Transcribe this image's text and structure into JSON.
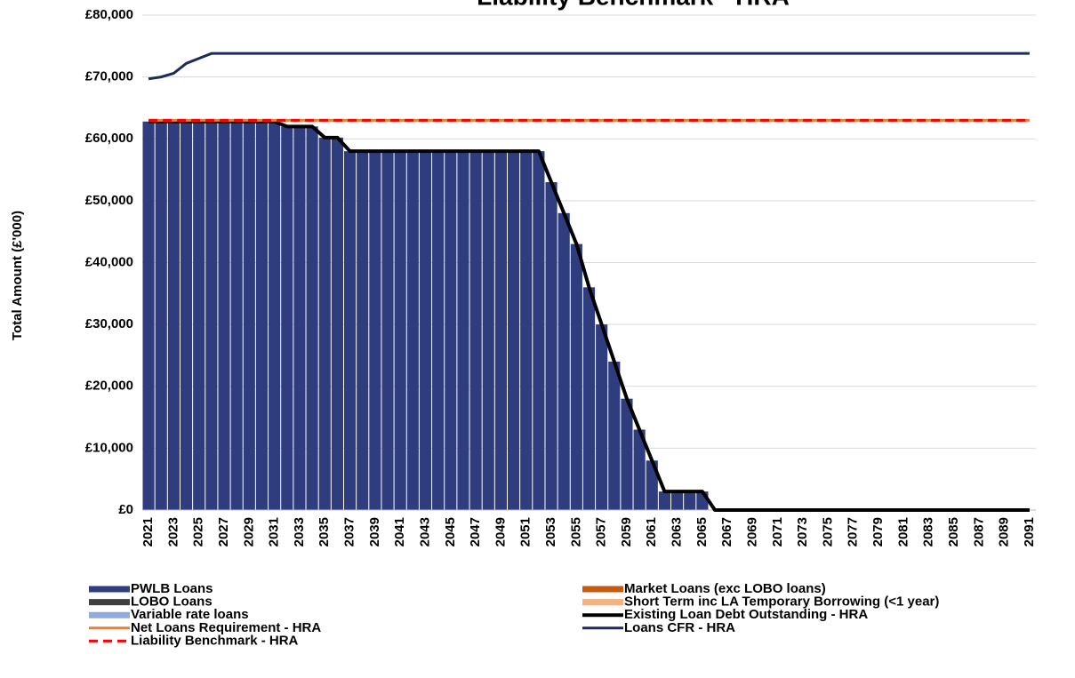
{
  "chart_data": {
    "type": "bar",
    "title": "Liability Benchmark - HRA",
    "y_label": "Total Amount (£'000)",
    "categories": [
      "2021",
      null,
      "2023",
      null,
      "2025",
      null,
      "2027",
      null,
      "2029",
      null,
      "2031",
      null,
      "2033",
      null,
      "2035",
      null,
      "2037",
      null,
      "2039",
      null,
      "2041",
      null,
      "2043",
      null,
      "2045",
      null,
      "2047",
      null,
      "2049",
      null,
      "2051",
      null,
      "2053",
      null,
      "2055",
      null,
      "2057",
      null,
      "2059",
      null,
      "2061",
      null,
      "2063",
      null,
      "2065",
      null,
      "2067",
      null,
      "2069",
      null,
      "2071",
      null,
      "2073",
      null,
      "2075",
      null,
      "2077",
      null,
      "2079",
      null,
      "2081",
      null,
      "2083",
      null,
      "2085",
      null,
      "2087",
      null,
      "2089",
      null,
      "2091"
    ],
    "ylim": [
      0,
      80000
    ],
    "yticks": [
      {
        "value": 0,
        "label": "£0"
      },
      {
        "value": 10000,
        "label": "£10,000"
      },
      {
        "value": 20000,
        "label": "£20,000"
      },
      {
        "value": 30000,
        "label": "£30,000"
      },
      {
        "value": 40000,
        "label": "£40,000"
      },
      {
        "value": 50000,
        "label": "£50,000"
      },
      {
        "value": 60000,
        "label": "£60,000"
      },
      {
        "value": 70000,
        "label": "£70,000"
      },
      {
        "value": 80000,
        "label": "£80,000"
      }
    ],
    "grid": true,
    "series": [
      {
        "name": "PWLB Loans",
        "color": "#2f3d7f",
        "kind": "bar",
        "values": [
          62800,
          62800,
          62800,
          62800,
          62800,
          62800,
          62800,
          62800,
          62800,
          62800,
          62800,
          62000,
          62000,
          62000,
          60200,
          60200,
          58000,
          58000,
          58000,
          58000,
          58000,
          58000,
          58000,
          58000,
          58000,
          58000,
          58000,
          58000,
          58000,
          58000,
          58000,
          58000,
          53000,
          48000,
          43000,
          36000,
          30000,
          24000,
          18000,
          13000,
          8000,
          3000,
          3000,
          3000,
          3000,
          0,
          0,
          0,
          0,
          0,
          0,
          0,
          0,
          0,
          0,
          0,
          0,
          0,
          0,
          0,
          0,
          0,
          0,
          0,
          0,
          0,
          0,
          0,
          0,
          0,
          0
        ]
      },
      {
        "name": "Market Loans (exc LOBO loans)",
        "color": "#c55a11",
        "kind": "bar",
        "values": [
          0,
          0,
          0,
          0,
          0,
          0,
          0,
          0,
          0,
          0,
          0,
          0,
          0,
          0,
          0,
          0,
          0,
          0,
          0,
          0,
          0,
          0,
          0,
          0,
          0,
          0,
          0,
          0,
          0,
          0,
          0,
          0,
          0,
          0,
          0,
          0,
          0,
          0,
          0,
          0,
          0,
          0,
          0,
          0,
          0,
          0,
          0,
          0,
          0,
          0,
          0,
          0,
          0,
          0,
          0,
          0,
          0,
          0,
          0,
          0,
          0,
          0,
          0,
          0,
          0,
          0,
          0,
          0,
          0,
          0,
          0
        ]
      },
      {
        "name": "LOBO Loans",
        "color": "#404040",
        "kind": "bar",
        "values": [
          0,
          0,
          0,
          0,
          0,
          0,
          0,
          0,
          0,
          0,
          0,
          0,
          0,
          0,
          0,
          0,
          0,
          0,
          0,
          0,
          0,
          0,
          0,
          0,
          0,
          0,
          0,
          0,
          0,
          0,
          0,
          0,
          0,
          0,
          0,
          0,
          0,
          0,
          0,
          0,
          0,
          0,
          0,
          0,
          0,
          0,
          0,
          0,
          0,
          0,
          0,
          0,
          0,
          0,
          0,
          0,
          0,
          0,
          0,
          0,
          0,
          0,
          0,
          0,
          0,
          0,
          0,
          0,
          0,
          0,
          0
        ]
      },
      {
        "name": "Short Term inc LA Temporary Borrowing (<1 year)",
        "color": "#f4b183",
        "kind": "bar",
        "values": [
          0,
          0,
          0,
          0,
          0,
          0,
          0,
          0,
          0,
          0,
          0,
          0,
          0,
          0,
          0,
          0,
          0,
          0,
          0,
          0,
          0,
          0,
          0,
          0,
          0,
          0,
          0,
          0,
          0,
          0,
          0,
          0,
          0,
          0,
          0,
          0,
          0,
          0,
          0,
          0,
          0,
          0,
          0,
          0,
          0,
          0,
          0,
          0,
          0,
          0,
          0,
          0,
          0,
          0,
          0,
          0,
          0,
          0,
          0,
          0,
          0,
          0,
          0,
          0,
          0,
          0,
          0,
          0,
          0,
          0,
          0
        ]
      },
      {
        "name": "Variable rate loans",
        "color": "#8faadc",
        "kind": "bar",
        "values": [
          0,
          0,
          0,
          0,
          0,
          0,
          0,
          0,
          0,
          0,
          0,
          0,
          0,
          0,
          0,
          0,
          0,
          0,
          0,
          0,
          0,
          0,
          0,
          0,
          0,
          0,
          0,
          0,
          0,
          0,
          0,
          0,
          0,
          0,
          0,
          0,
          0,
          0,
          0,
          0,
          0,
          0,
          0,
          0,
          0,
          0,
          0,
          0,
          0,
          0,
          0,
          0,
          0,
          0,
          0,
          0,
          0,
          0,
          0,
          0,
          0,
          0,
          0,
          0,
          0,
          0,
          0,
          0,
          0,
          0,
          0
        ]
      },
      {
        "name": "Existing Loan Debt Outstanding - HRA",
        "color": "#000000",
        "kind": "line",
        "width": 4,
        "values": [
          62800,
          62800,
          62800,
          62800,
          62800,
          62800,
          62800,
          62800,
          62800,
          62800,
          62800,
          62000,
          62000,
          62000,
          60200,
          60200,
          58000,
          58000,
          58000,
          58000,
          58000,
          58000,
          58000,
          58000,
          58000,
          58000,
          58000,
          58000,
          58000,
          58000,
          58000,
          58000,
          53000,
          48000,
          43000,
          36000,
          30000,
          24000,
          18000,
          13000,
          8000,
          3000,
          3000,
          3000,
          3000,
          0,
          0,
          0,
          0,
          0,
          0,
          0,
          0,
          0,
          0,
          0,
          0,
          0,
          0,
          0,
          0,
          0,
          0,
          0,
          0,
          0,
          0,
          0,
          0,
          0,
          0
        ]
      },
      {
        "name": "Net Loans Requirement - HRA",
        "color": "#ed7d31",
        "kind": "line",
        "width": 3,
        "values": [
          63000,
          63000,
          63000,
          63000,
          63000,
          63000,
          63000,
          63000,
          63000,
          63000,
          63000,
          63000,
          63000,
          63000,
          63000,
          63000,
          63000,
          63000,
          63000,
          63000,
          63000,
          63000,
          63000,
          63000,
          63000,
          63000,
          63000,
          63000,
          63000,
          63000,
          63000,
          63000,
          63000,
          63000,
          63000,
          63000,
          63000,
          63000,
          63000,
          63000,
          63000,
          63000,
          63000,
          63000,
          63000,
          63000,
          63000,
          63000,
          63000,
          63000,
          63000,
          63000,
          63000,
          63000,
          63000,
          63000,
          63000,
          63000,
          63000,
          63000,
          63000,
          63000,
          63000,
          63000,
          63000,
          63000,
          63000,
          63000,
          63000,
          63000,
          63000
        ]
      },
      {
        "name": "Loans CFR - HRA",
        "color": "#1f2a5c",
        "kind": "line",
        "width": 3,
        "values": [
          69700,
          70000,
          70600,
          72200,
          73000,
          73800,
          73800,
          73800,
          73800,
          73800,
          73800,
          73800,
          73800,
          73800,
          73800,
          73800,
          73800,
          73800,
          73800,
          73800,
          73800,
          73800,
          73800,
          73800,
          73800,
          73800,
          73800,
          73800,
          73800,
          73800,
          73800,
          73800,
          73800,
          73800,
          73800,
          73800,
          73800,
          73800,
          73800,
          73800,
          73800,
          73800,
          73800,
          73800,
          73800,
          73800,
          73800,
          73800,
          73800,
          73800,
          73800,
          73800,
          73800,
          73800,
          73800,
          73800,
          73800,
          73800,
          73800,
          73800,
          73800,
          73800,
          73800,
          73800,
          73800,
          73800,
          73800,
          73800,
          73800,
          73800,
          73800
        ]
      },
      {
        "name": "Liability Benchmark - HRA",
        "color": "#ff0000",
        "kind": "line",
        "width": 3,
        "dashed": true,
        "values": [
          63000,
          63000,
          63000,
          63000,
          63000,
          63000,
          63000,
          63000,
          63000,
          63000,
          63000,
          63000,
          63000,
          63000,
          63000,
          63000,
          63000,
          63000,
          63000,
          63000,
          63000,
          63000,
          63000,
          63000,
          63000,
          63000,
          63000,
          63000,
          63000,
          63000,
          63000,
          63000,
          63000,
          63000,
          63000,
          63000,
          63000,
          63000,
          63000,
          63000,
          63000,
          63000,
          63000,
          63000,
          63000,
          63000,
          63000,
          63000,
          63000,
          63000,
          63000,
          63000,
          63000,
          63000,
          63000,
          63000,
          63000,
          63000,
          63000,
          63000,
          63000,
          63000,
          63000,
          63000,
          63000,
          63000,
          63000,
          63000,
          63000,
          63000,
          63000
        ]
      }
    ]
  }
}
